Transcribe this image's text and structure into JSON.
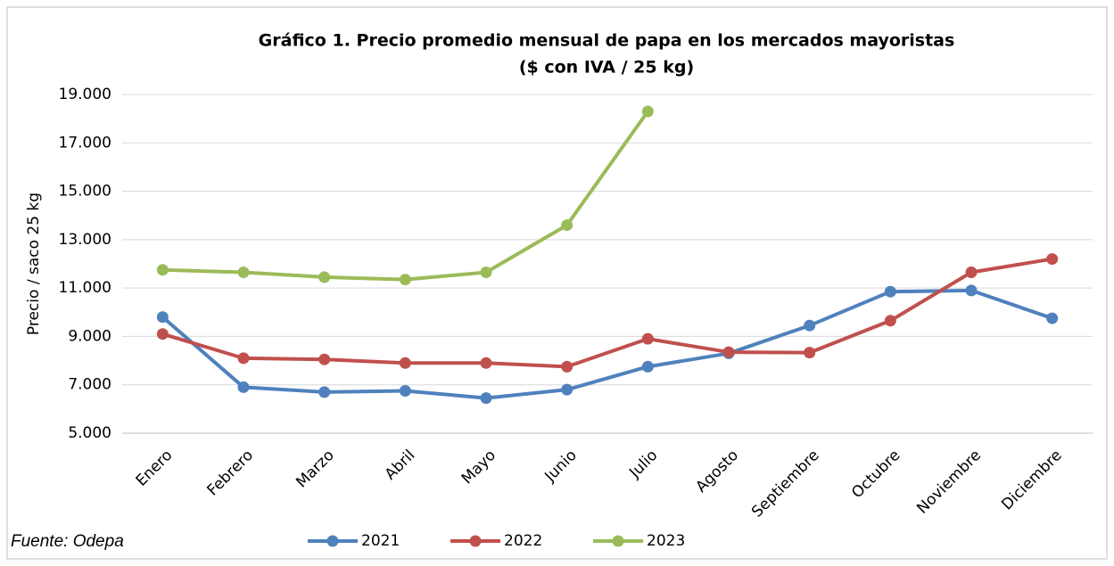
{
  "chart_data": {
    "type": "line",
    "title": [
      "Gráfico 1. Precio promedio mensual de papa en los mercados mayoristas",
      "($ con IVA / 25 kg)"
    ],
    "y_label": "Precio / saco 25 kg",
    "source": "Fuente: Odepa",
    "categories": [
      "Enero",
      "Febrero",
      "Marzo",
      "Abril",
      "Mayo",
      "Junio",
      "Julio",
      "Agosto",
      "Septiembre",
      "Octubre",
      "Noviembre",
      "Diciembre"
    ],
    "series": [
      {
        "name": "2021",
        "color": "#4f81bd",
        "values": [
          9800,
          6900,
          6700,
          6750,
          6450,
          6800,
          7750,
          8300,
          9450,
          10850,
          10900,
          9750
        ]
      },
      {
        "name": "2022",
        "color": "#c0504d",
        "values": [
          9100,
          8100,
          8050,
          7900,
          7900,
          7750,
          8900,
          8350,
          8330,
          9650,
          11650,
          12200
        ]
      },
      {
        "name": "2023",
        "color": "#9bbb59",
        "values": [
          11750,
          11650,
          11450,
          11350,
          11650,
          13600,
          18300,
          null,
          null,
          null,
          null,
          null
        ]
      }
    ],
    "ylim": [
      5000,
      19000
    ],
    "yticks": [
      {
        "value": 5000,
        "label": "5.000"
      },
      {
        "value": 7000,
        "label": "7.000"
      },
      {
        "value": 9000,
        "label": "9.000"
      },
      {
        "value": 11000,
        "label": "11.000"
      },
      {
        "value": 13000,
        "label": "13.000"
      },
      {
        "value": 15000,
        "label": "15.000"
      },
      {
        "value": 17000,
        "label": "17.000"
      },
      {
        "value": 19000,
        "label": "19.000"
      }
    ],
    "grid": true,
    "legend": "bottom"
  }
}
